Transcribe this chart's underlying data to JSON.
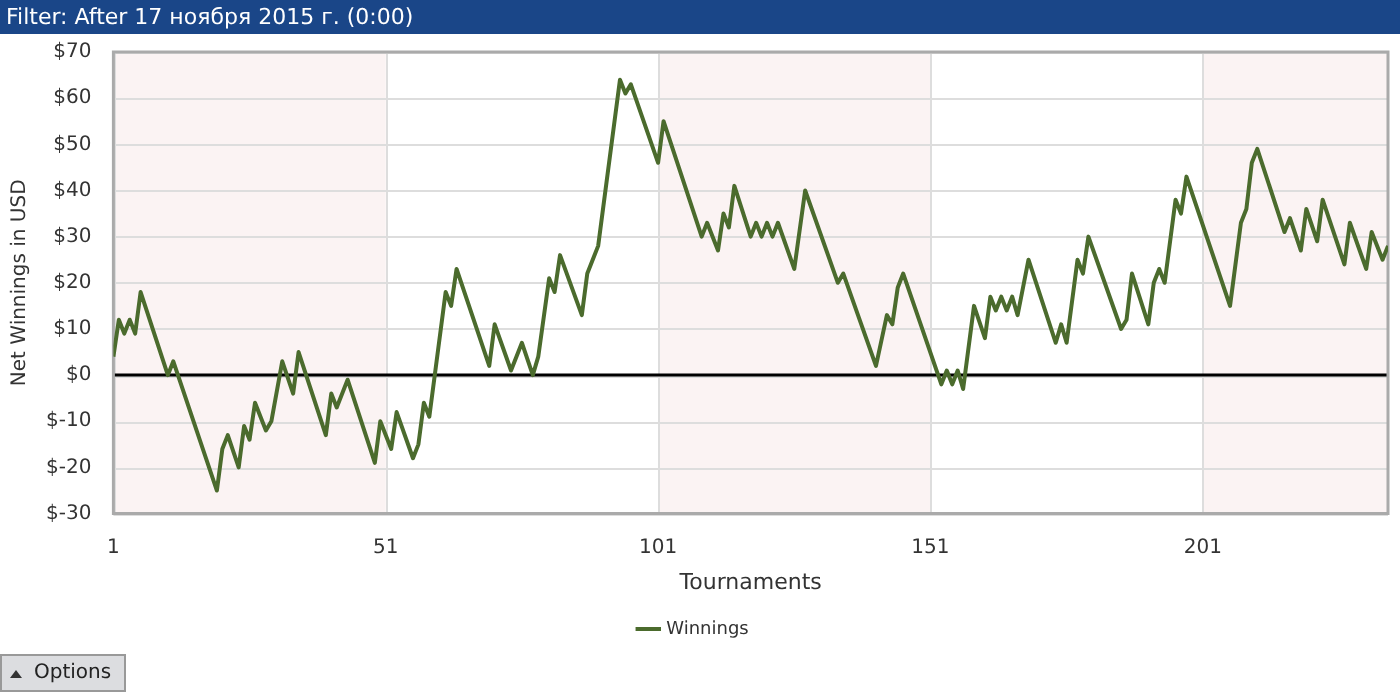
{
  "chart_data": {
    "type": "line",
    "title": "Filter: After 17 ноября 2015 г. (0:00)",
    "xlabel": "Tournaments",
    "ylabel": "Net Winnings in USD",
    "series": [
      {
        "name": "Winnings",
        "color": "#4b6b2d",
        "x": [
          1,
          2,
          3,
          4,
          5,
          6,
          11,
          12,
          20,
          21,
          22,
          24,
          25,
          26,
          27,
          29,
          30,
          32,
          34,
          35,
          40,
          41,
          42,
          44,
          49,
          50,
          52,
          53,
          56,
          57,
          58,
          59,
          62,
          63,
          64,
          70,
          71,
          74,
          76,
          78,
          79,
          81,
          82,
          83,
          87,
          88,
          90,
          94,
          95,
          96,
          101,
          102,
          109,
          110,
          112,
          113,
          114,
          115,
          118,
          119,
          120,
          121,
          122,
          123,
          126,
          128,
          134,
          135,
          141,
          143,
          144,
          145,
          146,
          153,
          154,
          155,
          156,
          157,
          159,
          161,
          162,
          163,
          164,
          165,
          166,
          167,
          169,
          174,
          175,
          176,
          178,
          179,
          180,
          186,
          187,
          188,
          191,
          192,
          193,
          194,
          196,
          197,
          198,
          206,
          208,
          209,
          210,
          211,
          216,
          217,
          219,
          220,
          222,
          223,
          227,
          228,
          231,
          232,
          234,
          235
        ],
        "values": [
          4,
          12,
          9,
          12,
          9,
          18,
          0,
          3,
          -25,
          -16,
          -13,
          -20,
          -11,
          -14,
          -6,
          -12,
          -10,
          3,
          -4,
          5,
          -13,
          -4,
          -7,
          -1,
          -19,
          -10,
          -16,
          -8,
          -18,
          -15,
          -6,
          -9,
          18,
          15,
          23,
          2,
          11,
          1,
          7,
          0,
          4,
          21,
          18,
          26,
          13,
          22,
          28,
          64,
          61,
          63,
          46,
          55,
          30,
          33,
          27,
          35,
          32,
          41,
          30,
          33,
          30,
          33,
          30,
          33,
          23,
          40,
          20,
          22,
          2,
          13,
          11,
          19,
          22,
          -2,
          1,
          -2,
          1,
          -3,
          15,
          8,
          17,
          14,
          17,
          14,
          17,
          13,
          25,
          7,
          11,
          7,
          25,
          22,
          30,
          10,
          12,
          22,
          11,
          20,
          23,
          20,
          38,
          35,
          43,
          15,
          33,
          36,
          46,
          49,
          31,
          34,
          27,
          36,
          29,
          38,
          24,
          33,
          23,
          31,
          25,
          28
        ]
      }
    ],
    "xlim": [
      1,
      235
    ],
    "xticks": [
      1,
      51,
      101,
      151,
      201
    ],
    "ylim": [
      -30,
      70
    ],
    "yticks": [
      {
        "value": -30,
        "label": "$-30"
      },
      {
        "value": -20,
        "label": "$-20"
      },
      {
        "value": -10,
        "label": "$-10"
      },
      {
        "value": 0,
        "label": "$0"
      },
      {
        "value": 10,
        "label": "$10"
      },
      {
        "value": 20,
        "label": "$20"
      },
      {
        "value": 30,
        "label": "$30"
      },
      {
        "value": 40,
        "label": "$40"
      },
      {
        "value": 50,
        "label": "$50"
      },
      {
        "value": 60,
        "label": "$60"
      },
      {
        "value": 70,
        "label": "$70"
      }
    ],
    "grid": true,
    "legend": "bottom",
    "marker": "none",
    "line_style": "solid",
    "ref_lines": [
      {
        "axis": "y",
        "value": 0,
        "color": "#000000"
      }
    ],
    "bands": [
      {
        "axis": "x",
        "from": 1,
        "to": 51,
        "color": "#fbf3f3"
      },
      {
        "axis": "x",
        "from": 101,
        "to": 151,
        "color": "#fbf3f3"
      },
      {
        "axis": "x",
        "from": 201,
        "to": 235,
        "color": "#fbf3f3"
      }
    ],
    "annotations": [
      "Options"
    ]
  }
}
